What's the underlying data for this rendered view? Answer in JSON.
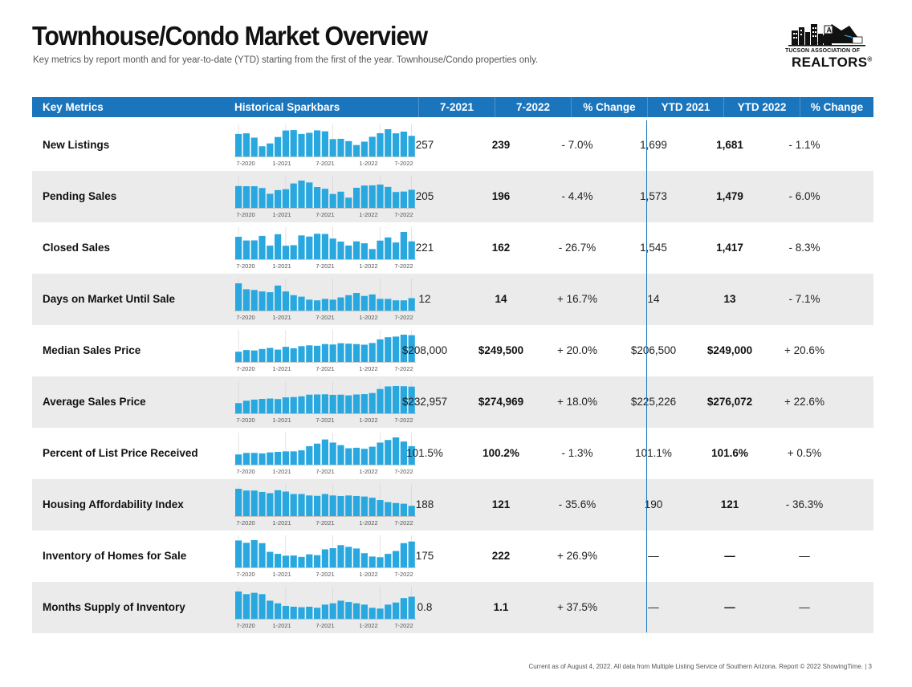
{
  "page": {
    "title": "Townhouse/Condo Market Overview",
    "subtitle": "Key metrics by report month and for year-to-date (YTD) starting from the first of the year. Townhouse/Condo properties only.",
    "footer": "Current as of August 4, 2022. All data from Multiple Listing Service of Southern Arizona. Report © 2022 ShowingTime.  |  3"
  },
  "logo": {
    "line1": "TUCSON ASSOCIATION OF",
    "line2": "REALTORS",
    "registered": "®",
    "icon": "city-skyline-mountain-logo"
  },
  "colors": {
    "header_bg": "#1b75bc",
    "bar": "#29a8e0",
    "alt_row": "#ebebeb"
  },
  "header": {
    "key_metrics": "Key Metrics",
    "sparkbars": "Historical Sparkbars",
    "m2021": "7-2021",
    "m2022": "7-2022",
    "pct_change": "% Change",
    "ytd2021": "YTD 2021",
    "ytd2022": "YTD 2022",
    "ytd_pct_change": "% Change"
  },
  "spark_axis": [
    "7-2020",
    "1-2021",
    "7-2021",
    "1-2022",
    "7-2022"
  ],
  "rows": [
    {
      "metric": "New Listings",
      "m2021": "257",
      "m2022": "239",
      "pct": "- 7.0%",
      "ytd2021": "1,699",
      "ytd2022": "1,681",
      "ytd_pct": "- 1.1%",
      "bars": [
        257,
        263,
        222,
        140,
        167,
        228,
        290,
        294,
        257,
        268,
        291,
        282,
        208,
        211,
        189,
        152,
        184,
        230,
        264,
        302,
        263,
        279,
        239
      ]
    },
    {
      "metric": "Pending Sales",
      "m2021": "205",
      "m2022": "196",
      "pct": "- 4.4%",
      "ytd2021": "1,573",
      "ytd2022": "1,479",
      "ytd_pct": "- 6.0%",
      "bars": [
        230,
        228,
        228,
        212,
        160,
        193,
        201,
        253,
        279,
        262,
        221,
        205,
        158,
        179,
        125,
        214,
        234,
        236,
        243,
        222,
        176,
        180,
        196
      ]
    },
    {
      "metric": "Closed Sales",
      "m2021": "221",
      "m2022": "162",
      "pct": "- 26.7%",
      "ytd2021": "1,545",
      "ytd2022": "1,417",
      "ytd_pct": "- 8.3%",
      "bars": [
        203,
        170,
        171,
        211,
        124,
        226,
        123,
        128,
        215,
        205,
        230,
        228,
        187,
        160,
        125,
        162,
        145,
        94,
        169,
        197,
        152,
        246,
        162
      ]
    },
    {
      "metric": "Days on Market Until Sale",
      "m2021": "12",
      "m2022": "14",
      "pct": "+ 16.7%",
      "ytd2021": "14",
      "ytd2022": "13",
      "ytd_pct": "- 7.1%",
      "bars": [
        34,
        26,
        25,
        23,
        22,
        31,
        23,
        18,
        16,
        12,
        11,
        13,
        12,
        15,
        18,
        21,
        17,
        19,
        13,
        13,
        11,
        11,
        14
      ]
    },
    {
      "metric": "Median Sales Price",
      "m2021": "$208,000",
      "m2022": "$249,500",
      "pct": "+ 20.0%",
      "ytd2021": "$206,500",
      "ytd2022": "$249,000",
      "ytd_pct": "+ 20.6%",
      "bars": [
        172000,
        180000,
        178000,
        185000,
        190000,
        182000,
        195000,
        188000,
        198000,
        202000,
        200000,
        208000,
        206000,
        212000,
        210000,
        208000,
        205000,
        213000,
        230000,
        240000,
        243000,
        252000,
        249500
      ]
    },
    {
      "metric": "Average Sales Price",
      "m2021": "$232,957",
      "m2022": "$274,969",
      "pct": "+ 18.0%",
      "ytd2021": "$225,226",
      "ytd2022": "$276,072",
      "ytd_pct": "+ 22.6%",
      "bars": [
        185000,
        198000,
        204000,
        208000,
        210000,
        207000,
        216000,
        218000,
        222000,
        231000,
        232000,
        233000,
        230000,
        231000,
        227000,
        232000,
        234000,
        240000,
        262000,
        276000,
        278000,
        277000,
        274969
      ]
    },
    {
      "metric": "Percent of List Price Received",
      "m2021": "101.5%",
      "m2022": "100.2%",
      "pct": "- 1.3%",
      "ytd2021": "101.1%",
      "ytd2022": "101.6%",
      "ytd_pct": "+ 0.5%",
      "bars": [
        98.6,
        98.9,
        98.9,
        98.8,
        99.0,
        99.1,
        99.2,
        99.2,
        99.4,
        100.2,
        100.7,
        101.5,
        100.9,
        100.4,
        99.8,
        99.9,
        99.7,
        100.1,
        100.9,
        101.4,
        101.9,
        101.1,
        100.2
      ]
    },
    {
      "metric": "Housing Affordability Index",
      "m2021": "188",
      "m2022": "121",
      "pct": "- 35.6%",
      "ytd2021": "190",
      "ytd2022": "121",
      "ytd_pct": "- 36.3%",
      "bars": [
        218,
        208,
        208,
        200,
        193,
        210,
        202,
        188,
        188,
        180,
        178,
        188,
        180,
        177,
        180,
        177,
        174,
        167,
        154,
        142,
        137,
        133,
        121
      ]
    },
    {
      "metric": "Inventory of Homes for Sale",
      "m2021": "175",
      "m2022": "222",
      "pct": "+ 26.9%",
      "ytd2021": "—",
      "ytd2022": "—",
      "ytd_pct": "—",
      "bars": [
        228,
        214,
        230,
        212,
        160,
        148,
        137,
        138,
        130,
        145,
        140,
        175,
        182,
        200,
        190,
        180,
        152,
        132,
        128,
        148,
        165,
        212,
        222
      ]
    },
    {
      "metric": "Months Supply of Inventory",
      "m2021": "0.8",
      "m2022": "1.1",
      "pct": "+ 37.5%",
      "ytd2021": "—",
      "ytd2022": "—",
      "ytd_pct": "—",
      "bars": [
        1.3,
        1.2,
        1.25,
        1.2,
        0.95,
        0.85,
        0.75,
        0.72,
        0.7,
        0.72,
        0.68,
        0.8,
        0.85,
        0.95,
        0.9,
        0.85,
        0.8,
        0.68,
        0.65,
        0.8,
        0.88,
        1.05,
        1.1
      ]
    }
  ]
}
